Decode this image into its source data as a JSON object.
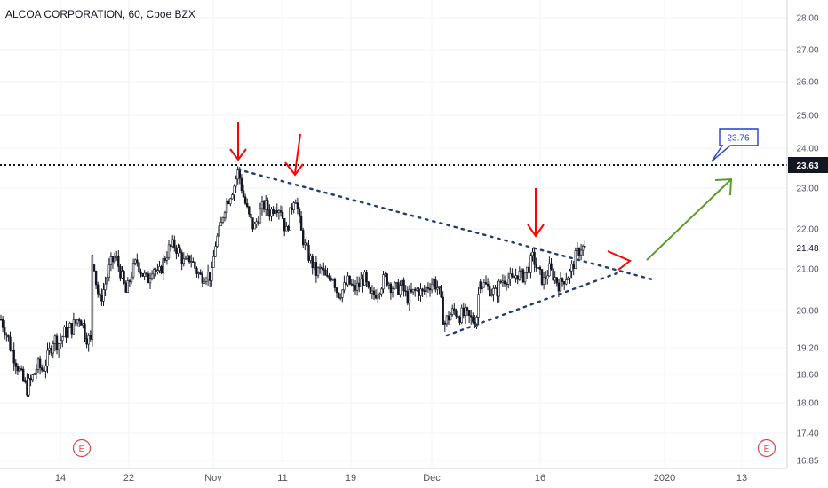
{
  "title": "ALCOA CORPORATION, 60, Cboe BZX",
  "colors": {
    "candle": "#131722",
    "arrow_red": "#ff0000",
    "arrow_green": "#5b9a2f",
    "trendline": "#1f3d73",
    "target_box": "#1e3dd8",
    "earnings": "#e0474c",
    "grid": "#f0f3fa",
    "axis_text": "#50535e"
  },
  "chart_data": {
    "type": "candlestick",
    "ylim": [
      16.85,
      28.2
    ],
    "y_ticks": [
      "28.00",
      "27.00",
      "26.00",
      "25.00",
      "24.00",
      "23.00",
      "22.00",
      "21.00",
      "20.00",
      "19.20",
      "18.60",
      "18.00",
      "17.40",
      "16.85"
    ],
    "y_tick_values": [
      28.0,
      27.0,
      26.0,
      25.0,
      24.0,
      23.0,
      22.0,
      21.0,
      20.0,
      19.2,
      18.6,
      18.0,
      17.4,
      16.85
    ],
    "x_ticks": [
      "14",
      "22",
      "Nov",
      "11",
      "19",
      "Dec",
      "16",
      "2020",
      "13"
    ],
    "price_labels": [
      {
        "text": "23.63",
        "value": 23.63,
        "style": "dark"
      },
      {
        "text": "21.48",
        "value": 21.48,
        "style": "light"
      }
    ],
    "horizontal_line": {
      "value": 23.63,
      "style": "dotted"
    },
    "target_label": "23.76",
    "earnings_marker": "E",
    "price_path": [
      [
        0,
        19.85
      ],
      [
        6,
        19.6
      ],
      [
        12,
        19.2
      ],
      [
        18,
        18.9
      ],
      [
        24,
        18.55
      ],
      [
        30,
        18.3
      ],
      [
        36,
        18.5
      ],
      [
        42,
        18.8
      ],
      [
        48,
        18.7
      ],
      [
        54,
        19.0
      ],
      [
        60,
        19.4
      ],
      [
        66,
        19.3
      ],
      [
        72,
        19.5
      ],
      [
        78,
        19.6
      ],
      [
        84,
        19.7
      ],
      [
        90,
        19.9
      ],
      [
        96,
        19.5
      ],
      [
        102,
        19.3
      ],
      [
        104,
        21.5
      ],
      [
        108,
        20.7
      ],
      [
        112,
        20.2
      ],
      [
        118,
        20.6
      ],
      [
        124,
        21.1
      ],
      [
        130,
        21.3
      ],
      [
        136,
        20.9
      ],
      [
        142,
        20.4
      ],
      [
        148,
        20.9
      ],
      [
        154,
        21.2
      ],
      [
        160,
        20.9
      ],
      [
        166,
        20.7
      ],
      [
        172,
        21.1
      ],
      [
        178,
        20.8
      ],
      [
        184,
        21.2
      ],
      [
        190,
        21.5
      ],
      [
        196,
        21.6
      ],
      [
        202,
        21.4
      ],
      [
        208,
        21.1
      ],
      [
        214,
        21.3
      ],
      [
        220,
        21.0
      ],
      [
        226,
        20.8
      ],
      [
        232,
        20.9
      ],
      [
        238,
        20.8
      ],
      [
        242,
        21.6
      ],
      [
        248,
        22.0
      ],
      [
        252,
        22.5
      ],
      [
        258,
        22.8
      ],
      [
        264,
        23.1
      ],
      [
        268,
        23.45
      ],
      [
        274,
        22.8
      ],
      [
        280,
        22.3
      ],
      [
        286,
        22.0
      ],
      [
        292,
        22.4
      ],
      [
        298,
        22.6
      ],
      [
        304,
        22.4
      ],
      [
        310,
        22.6
      ],
      [
        316,
        22.5
      ],
      [
        322,
        21.9
      ],
      [
        328,
        22.5
      ],
      [
        332,
        22.9
      ],
      [
        338,
        22.0
      ],
      [
        344,
        21.5
      ],
      [
        350,
        21.2
      ],
      [
        356,
        20.9
      ],
      [
        362,
        21.0
      ],
      [
        368,
        20.7
      ],
      [
        374,
        20.9
      ],
      [
        380,
        20.4
      ],
      [
        386,
        20.5
      ],
      [
        392,
        20.7
      ],
      [
        398,
        20.5
      ],
      [
        404,
        20.6
      ],
      [
        410,
        20.8
      ],
      [
        416,
        20.3
      ],
      [
        422,
        20.4
      ],
      [
        428,
        20.6
      ],
      [
        434,
        20.8
      ],
      [
        440,
        20.6
      ],
      [
        446,
        20.5
      ],
      [
        452,
        20.6
      ],
      [
        458,
        20.3
      ],
      [
        464,
        20.4
      ],
      [
        470,
        20.5
      ],
      [
        476,
        20.4
      ],
      [
        482,
        20.6
      ],
      [
        488,
        20.7
      ],
      [
        494,
        20.5
      ],
      [
        500,
        19.7
      ],
      [
        506,
        19.9
      ],
      [
        512,
        20.0
      ],
      [
        518,
        19.9
      ],
      [
        524,
        19.9
      ],
      [
        530,
        19.8
      ],
      [
        536,
        19.8
      ],
      [
        540,
        20.7
      ],
      [
        546,
        20.6
      ],
      [
        552,
        20.5
      ],
      [
        558,
        20.4
      ],
      [
        564,
        20.7
      ],
      [
        570,
        20.8
      ],
      [
        576,
        20.7
      ],
      [
        582,
        20.9
      ],
      [
        588,
        20.8
      ],
      [
        594,
        21.0
      ],
      [
        600,
        21.3
      ],
      [
        606,
        20.9
      ],
      [
        612,
        20.7
      ],
      [
        618,
        21.0
      ],
      [
        624,
        20.8
      ],
      [
        630,
        20.6
      ],
      [
        636,
        20.8
      ],
      [
        642,
        20.9
      ],
      [
        648,
        21.3
      ],
      [
        654,
        21.55
      ],
      [
        660,
        21.48
      ]
    ]
  }
}
